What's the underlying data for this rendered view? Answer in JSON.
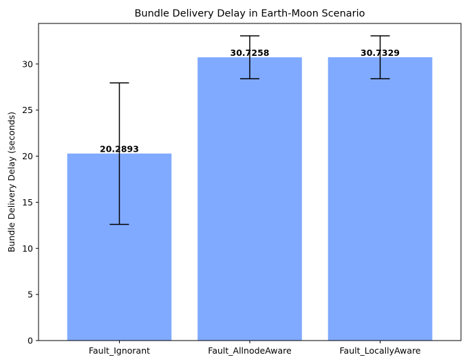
{
  "chart_data": {
    "type": "bar",
    "title": "Bundle Delivery Delay in Earth-Moon Scenario",
    "xlabel": "",
    "ylabel": "Bundle Delivery Delay (seconds)",
    "categories": [
      "Fault_Ignorant",
      "Fault_AllnodeAware",
      "Fault_LocallyAware"
    ],
    "values": [
      20.2893,
      30.7258,
      30.7329
    ],
    "value_labels": [
      "20.2893",
      "30.7258",
      "30.7329"
    ],
    "error_low": [
      12.6,
      28.4,
      28.4
    ],
    "error_high": [
      27.95,
      33.05,
      33.05
    ],
    "ylim": [
      0,
      34.4
    ],
    "yticks": [
      0,
      5,
      10,
      15,
      20,
      25,
      30
    ],
    "ytick_labels": [
      "0",
      "5",
      "10",
      "15",
      "20",
      "25",
      "30"
    ],
    "grid": false,
    "colors": {
      "bar": "#80aaff",
      "error": "#000000",
      "axis": "#000000"
    }
  }
}
